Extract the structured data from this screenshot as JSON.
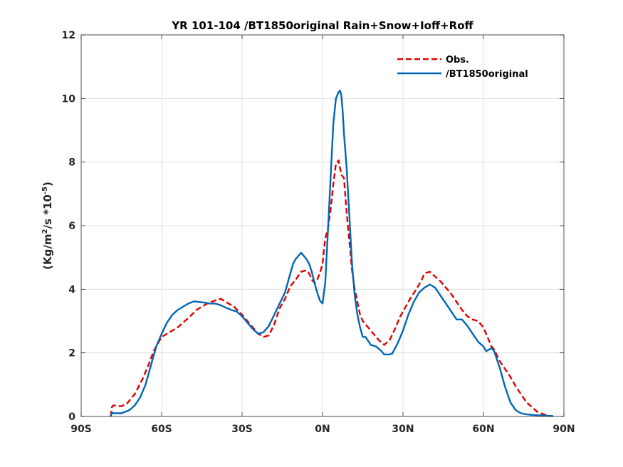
{
  "chart_data": {
    "type": "line",
    "title": "YR 101-104 /BT1850original  Rain+Snow+Ioff+Roff",
    "ylabel_parts": [
      "(Kg/m",
      "2",
      "/s *10",
      "-5",
      ")"
    ],
    "xlim": [
      -90,
      90
    ],
    "ylim": [
      0,
      12
    ],
    "x_ticks": [
      {
        "value": -90,
        "label": "90S"
      },
      {
        "value": -60,
        "label": "60S"
      },
      {
        "value": -30,
        "label": "30S"
      },
      {
        "value": 0,
        "label": "0N"
      },
      {
        "value": 30,
        "label": "30N"
      },
      {
        "value": 60,
        "label": "60N"
      },
      {
        "value": 90,
        "label": "90N"
      }
    ],
    "y_ticks": [
      {
        "value": 0,
        "label": "0"
      },
      {
        "value": 2,
        "label": "2"
      },
      {
        "value": 4,
        "label": "4"
      },
      {
        "value": 6,
        "label": "6"
      },
      {
        "value": 8,
        "label": "8"
      },
      {
        "value": 10,
        "label": "10"
      },
      {
        "value": 12,
        "label": "12"
      }
    ],
    "grid": true,
    "legend_position": "top-right",
    "series": [
      {
        "name": "Obs.",
        "color": "#e00000",
        "dash": "dashed",
        "x": [
          -79,
          -78.5,
          -78,
          -75,
          -73,
          -70,
          -67,
          -65,
          -63,
          -61,
          -60,
          -57,
          -54,
          -50,
          -47,
          -43,
          -40,
          -38,
          -36,
          -33,
          -30,
          -27,
          -24,
          -22,
          -20,
          -18,
          -16,
          -14,
          -12,
          -10,
          -8,
          -6,
          -5,
          -4,
          -3,
          -2,
          -1,
          0,
          1,
          2,
          3,
          4,
          5,
          6,
          7,
          8,
          9,
          10,
          11,
          12,
          13,
          14,
          15,
          17,
          19,
          21,
          23,
          25,
          27,
          29,
          31,
          33,
          35,
          37,
          38,
          40,
          42,
          44,
          46,
          48,
          50,
          52,
          54,
          56,
          58,
          60,
          62,
          63,
          64,
          66,
          68,
          70,
          72,
          74,
          76,
          78,
          80,
          82,
          84,
          86
        ],
        "values": [
          0,
          0.3,
          0.35,
          0.32,
          0.4,
          0.7,
          1.2,
          1.6,
          2.05,
          2.35,
          2.5,
          2.65,
          2.8,
          3.1,
          3.35,
          3.55,
          3.65,
          3.7,
          3.6,
          3.45,
          3.2,
          2.9,
          2.6,
          2.5,
          2.55,
          2.9,
          3.4,
          3.7,
          4.1,
          4.3,
          4.55,
          4.6,
          4.5,
          4.3,
          4.2,
          4.3,
          4.5,
          4.8,
          5.6,
          5.9,
          6.5,
          7.3,
          7.95,
          8.05,
          7.6,
          7.5,
          6.4,
          5.5,
          4.6,
          4.0,
          3.6,
          3.2,
          3.0,
          2.8,
          2.6,
          2.4,
          2.25,
          2.4,
          2.75,
          3.15,
          3.45,
          3.75,
          4.0,
          4.3,
          4.5,
          4.55,
          4.4,
          4.25,
          4.05,
          3.85,
          3.6,
          3.35,
          3.15,
          3.05,
          3.0,
          2.8,
          2.4,
          2.2,
          2.1,
          1.75,
          1.5,
          1.25,
          0.95,
          0.7,
          0.45,
          0.3,
          0.15,
          0.08,
          0.03,
          0.01
        ]
      },
      {
        "name": "/BT1850original",
        "color": "#0066b3",
        "dash": "solid",
        "x": [
          -79,
          -78.5,
          -78,
          -75,
          -72,
          -70,
          -68,
          -66,
          -64,
          -62,
          -60,
          -58,
          -56,
          -54,
          -52,
          -50,
          -48,
          -46,
          -44,
          -42,
          -40,
          -38,
          -36,
          -34,
          -32,
          -30,
          -28,
          -26,
          -24,
          -22,
          -20,
          -18,
          -16,
          -14,
          -12,
          -11,
          -10,
          -9,
          -8,
          -7,
          -6,
          -5,
          -4,
          -3,
          -2,
          -1,
          0,
          1,
          2,
          3,
          4,
          5,
          6,
          6.5,
          7,
          7.5,
          8,
          9,
          10,
          11,
          12,
          13,
          14,
          15,
          16,
          18,
          20,
          22,
          23,
          24,
          25,
          26,
          28,
          30,
          32,
          34,
          36,
          38,
          40,
          42,
          44,
          46,
          48,
          50,
          52,
          54,
          56,
          58,
          60,
          61,
          62,
          63,
          64,
          65,
          66,
          67,
          68,
          69,
          70,
          72,
          74,
          76,
          78,
          80,
          82,
          84,
          86
        ],
        "values": [
          0,
          0.12,
          0.1,
          0.1,
          0.2,
          0.35,
          0.6,
          1.0,
          1.6,
          2.2,
          2.6,
          2.95,
          3.2,
          3.35,
          3.45,
          3.55,
          3.62,
          3.6,
          3.58,
          3.55,
          3.55,
          3.5,
          3.42,
          3.35,
          3.3,
          3.15,
          2.95,
          2.75,
          2.6,
          2.65,
          2.85,
          3.2,
          3.55,
          3.9,
          4.5,
          4.8,
          4.95,
          5.05,
          5.15,
          5.05,
          4.95,
          4.8,
          4.55,
          4.2,
          3.9,
          3.65,
          3.55,
          4.2,
          5.8,
          7.5,
          9.2,
          10.0,
          10.2,
          10.25,
          10.1,
          9.6,
          8.9,
          7.8,
          6.3,
          4.8,
          3.8,
          3.2,
          2.8,
          2.5,
          2.5,
          2.25,
          2.2,
          2.05,
          1.95,
          1.95,
          1.95,
          1.98,
          2.3,
          2.7,
          3.2,
          3.6,
          3.9,
          4.05,
          4.15,
          4.05,
          3.8,
          3.55,
          3.3,
          3.05,
          3.05,
          2.85,
          2.6,
          2.35,
          2.2,
          2.05,
          2.1,
          2.15,
          2.05,
          1.8,
          1.55,
          1.25,
          0.95,
          0.7,
          0.45,
          0.2,
          0.1,
          0.07,
          0.05,
          0.04,
          0.03,
          0.02,
          0.01
        ]
      }
    ]
  }
}
